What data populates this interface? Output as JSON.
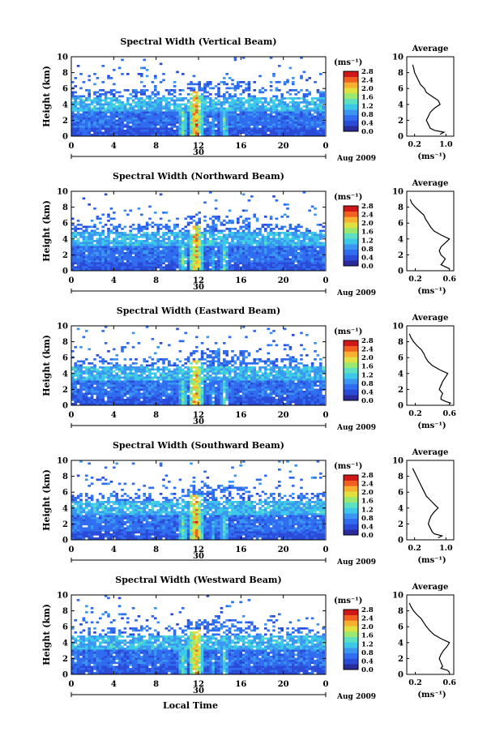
{
  "chart_data": [
    {
      "type": "heatmap",
      "title": "Spectral Width (Vertical Beam)",
      "ylabel": "Height (km)",
      "xlabel": "",
      "date_label": "30",
      "month_label": "Aug 2009",
      "x_ticks": [
        "0",
        "4",
        "8",
        "12",
        "16",
        "20",
        "0"
      ],
      "y_ticks": [
        "0",
        "2",
        "4",
        "6",
        "8",
        "10"
      ],
      "xlim": [
        0,
        24
      ],
      "ylim": [
        0,
        10
      ],
      "colorbar": {
        "unit": "(ms⁻¹)",
        "ticks": [
          "0.0",
          "0.4",
          "0.8",
          "1.2",
          "1.6",
          "2.0",
          "2.4",
          "2.8"
        ],
        "range": [
          0,
          2.8
        ]
      },
      "profile": {
        "title": "Average",
        "xlabel": "(ms⁻¹)",
        "x_ticks": [
          "0.2",
          "1.0"
        ],
        "y_ticks": [
          "0",
          "2",
          "4",
          "6",
          "8",
          "10"
        ],
        "xlim": [
          0,
          1.2
        ],
        "heights": [
          0.25,
          0.5,
          0.75,
          1.0,
          1.5,
          2.0,
          2.5,
          3.0,
          3.5,
          4.0,
          4.5,
          5.0,
          5.5,
          6.0,
          6.5,
          7.0,
          7.5,
          8.0,
          8.5,
          9.0
        ],
        "values": [
          0.85,
          0.95,
          0.7,
          0.6,
          0.55,
          0.5,
          0.55,
          0.6,
          0.7,
          0.85,
          0.8,
          0.65,
          0.5,
          0.45,
          0.35,
          0.3,
          0.25,
          0.2,
          0.18,
          0.15
        ]
      }
    },
    {
      "type": "heatmap",
      "title": "Spectral Width (Northward Beam)",
      "ylabel": "Height (km)",
      "xlabel": "",
      "date_label": "30",
      "month_label": "Aug 2009",
      "x_ticks": [
        "0",
        "4",
        "8",
        "12",
        "16",
        "20",
        "0"
      ],
      "y_ticks": [
        "0",
        "2",
        "4",
        "6",
        "8",
        "10"
      ],
      "xlim": [
        0,
        24
      ],
      "ylim": [
        0,
        10
      ],
      "colorbar": {
        "unit": "(ms⁻¹)",
        "ticks": [
          "0.0",
          "0.4",
          "0.8",
          "1.2",
          "1.6",
          "2.0",
          "2.4",
          "2.8"
        ],
        "range": [
          0,
          2.8
        ]
      },
      "profile": {
        "title": "Average",
        "xlabel": "(ms⁻¹)",
        "x_ticks": [
          "0.2",
          "0.6"
        ],
        "y_ticks": [
          "0",
          "2",
          "4",
          "6",
          "8",
          "10"
        ],
        "xlim": [
          0.1,
          0.65
        ],
        "heights": [
          0.25,
          0.5,
          0.75,
          1.0,
          1.5,
          2.0,
          2.5,
          3.0,
          3.5,
          4.0,
          4.5,
          5.0,
          5.5,
          6.0,
          6.5,
          7.0,
          7.5,
          8.0,
          8.5,
          9.0
        ],
        "values": [
          0.6,
          0.55,
          0.5,
          0.52,
          0.55,
          0.5,
          0.48,
          0.5,
          0.55,
          0.6,
          0.5,
          0.42,
          0.38,
          0.35,
          0.32,
          0.3,
          0.25,
          0.2,
          0.16,
          0.14
        ]
      }
    },
    {
      "type": "heatmap",
      "title": "Spectral Width (Eastward Beam)",
      "ylabel": "Height (km)",
      "xlabel": "",
      "date_label": "30",
      "month_label": "Aug 2009",
      "x_ticks": [
        "0",
        "4",
        "8",
        "12",
        "16",
        "20",
        "0"
      ],
      "y_ticks": [
        "0",
        "2",
        "4",
        "6",
        "8",
        "10"
      ],
      "xlim": [
        0,
        24
      ],
      "ylim": [
        0,
        10
      ],
      "colorbar": {
        "unit": "(ms⁻¹)",
        "ticks": [
          "0.0",
          "0.4",
          "0.8",
          "1.2",
          "1.6",
          "2.0",
          "2.4",
          "2.8"
        ],
        "range": [
          0,
          2.8
        ]
      },
      "profile": {
        "title": "Average",
        "xlabel": "(ms⁻¹)",
        "x_ticks": [
          "0.2",
          "0.6"
        ],
        "y_ticks": [
          "0",
          "2",
          "4",
          "6",
          "8",
          "10"
        ],
        "xlim": [
          0.1,
          0.65
        ],
        "heights": [
          0.25,
          0.5,
          0.75,
          1.0,
          1.5,
          2.0,
          2.5,
          3.0,
          3.5,
          4.0,
          4.5,
          5.0,
          5.5,
          6.0,
          6.5,
          7.0,
          7.5,
          8.0,
          8.5,
          9.0
        ],
        "values": [
          0.62,
          0.55,
          0.5,
          0.5,
          0.52,
          0.48,
          0.5,
          0.52,
          0.55,
          0.58,
          0.48,
          0.4,
          0.35,
          0.32,
          0.3,
          0.27,
          0.22,
          0.18,
          0.15,
          0.13
        ]
      }
    },
    {
      "type": "heatmap",
      "title": "Spectral Width (Southward Beam)",
      "ylabel": "Height (km)",
      "xlabel": "",
      "date_label": "30",
      "month_label": "Aug 2009",
      "x_ticks": [
        "0",
        "4",
        "8",
        "12",
        "16",
        "20",
        "0"
      ],
      "y_ticks": [
        "0",
        "2",
        "4",
        "6",
        "8",
        "10"
      ],
      "xlim": [
        0,
        24
      ],
      "ylim": [
        0,
        10
      ],
      "colorbar": {
        "unit": "(ms⁻¹)",
        "ticks": [
          "0.0",
          "0.4",
          "0.8",
          "1.2",
          "1.6",
          "2.0",
          "2.4",
          "2.8"
        ],
        "range": [
          0,
          2.8
        ]
      },
      "profile": {
        "title": "Average",
        "xlabel": "(ms⁻¹)",
        "x_ticks": [
          "0.2",
          "1.0"
        ],
        "y_ticks": [
          "0",
          "2",
          "4",
          "6",
          "8",
          "10"
        ],
        "xlim": [
          0,
          1.2
        ],
        "heights": [
          0.25,
          0.5,
          0.75,
          1.0,
          1.5,
          2.0,
          2.5,
          3.0,
          3.5,
          4.0,
          4.5,
          5.0,
          5.5,
          6.0,
          6.5,
          7.0,
          7.5,
          8.0,
          8.5,
          9.0
        ],
        "values": [
          0.8,
          0.9,
          0.7,
          0.65,
          0.6,
          0.55,
          0.58,
          0.62,
          0.7,
          0.8,
          0.7,
          0.6,
          0.5,
          0.45,
          0.4,
          0.35,
          0.3,
          0.25,
          0.2,
          0.15
        ]
      }
    },
    {
      "type": "heatmap",
      "title": "Spectral Width (Westward Beam)",
      "ylabel": "Height (km)",
      "xlabel": "Local Time",
      "date_label": "30",
      "month_label": "Aug 2009",
      "x_ticks": [
        "0",
        "4",
        "8",
        "12",
        "16",
        "20",
        "0"
      ],
      "y_ticks": [
        "0",
        "2",
        "4",
        "6",
        "8",
        "10"
      ],
      "xlim": [
        0,
        24
      ],
      "ylim": [
        0,
        10
      ],
      "colorbar": {
        "unit": "(ms⁻¹)",
        "ticks": [
          "0.0",
          "0.4",
          "0.8",
          "1.2",
          "1.6",
          "2.0",
          "2.4",
          "2.8"
        ],
        "range": [
          0,
          2.8
        ]
      },
      "profile": {
        "title": "Average",
        "xlabel": "(ms⁻¹)",
        "x_ticks": [
          "0.2",
          "0.6"
        ],
        "y_ticks": [
          "0",
          "2",
          "4",
          "6",
          "8",
          "10"
        ],
        "xlim": [
          0.1,
          0.65
        ],
        "heights": [
          0.25,
          0.5,
          0.75,
          1.0,
          1.5,
          2.0,
          2.5,
          3.0,
          3.5,
          4.0,
          4.5,
          5.0,
          5.5,
          6.0,
          6.5,
          7.0,
          7.5,
          8.0,
          8.5,
          9.0
        ],
        "values": [
          0.6,
          0.58,
          0.5,
          0.52,
          0.5,
          0.48,
          0.5,
          0.53,
          0.57,
          0.6,
          0.5,
          0.42,
          0.37,
          0.33,
          0.3,
          0.27,
          0.22,
          0.18,
          0.15,
          0.13
        ]
      }
    }
  ],
  "colors": {
    "colormap": [
      "#2a2a9a",
      "#2a4ad8",
      "#2f6cf0",
      "#3a96f0",
      "#3cc8e8",
      "#5ce0c0",
      "#9ae870",
      "#e0e040",
      "#f8b030",
      "#f06020",
      "#d01818"
    ]
  }
}
